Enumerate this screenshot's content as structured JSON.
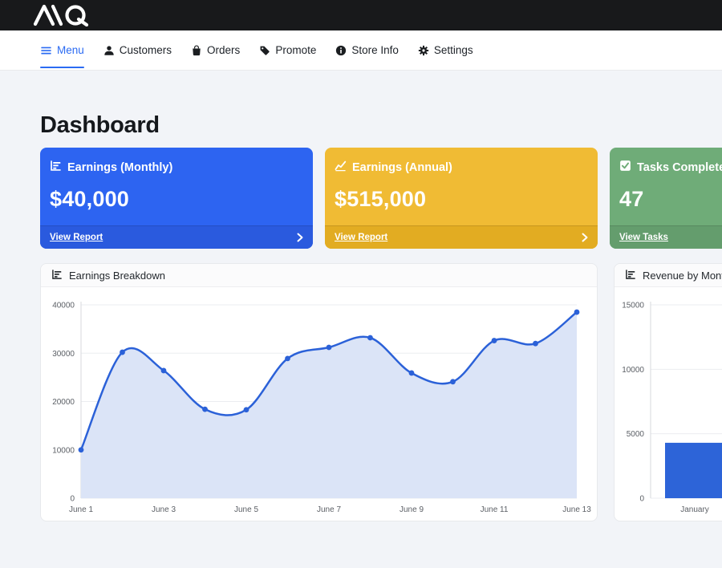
{
  "brand": {
    "name": "AQ"
  },
  "nav": {
    "items": [
      {
        "label": "Menu",
        "icon": "hamburger-icon",
        "active": true
      },
      {
        "label": "Customers",
        "icon": "person-icon",
        "active": false
      },
      {
        "label": "Orders",
        "icon": "shopping-bag-icon",
        "active": false
      },
      {
        "label": "Promote",
        "icon": "tag-icon",
        "active": false
      },
      {
        "label": "Store Info",
        "icon": "info-circle-icon",
        "active": false
      },
      {
        "label": "Settings",
        "icon": "gear-icon",
        "active": false
      }
    ]
  },
  "page": {
    "title": "Dashboard"
  },
  "stat_cards": [
    {
      "title": "Earnings (Monthly)",
      "value": "$40,000",
      "link": "View Report",
      "icon": "chart-bar-icon",
      "color": "#2d64f1",
      "footer_color": "#2a5ade"
    },
    {
      "title": "Earnings (Annual)",
      "value": "$515,000",
      "link": "View Report",
      "icon": "chart-line-icon",
      "color": "#f0bb34",
      "footer_color": "#e2ac22"
    },
    {
      "title": "Tasks Completed",
      "value": "47",
      "link": "View Tasks",
      "icon": "check-square-icon",
      "color": "#6fac78",
      "footer_color": "#649d6d"
    }
  ],
  "chart_data": [
    {
      "type": "area",
      "title": "Earnings Breakdown",
      "x": [
        "June 1",
        "June 2",
        "June 3",
        "June 4",
        "June 5",
        "June 6",
        "June 7",
        "June 8",
        "June 9",
        "June 10",
        "June 11",
        "June 12",
        "June 13"
      ],
      "values": [
        10000,
        30200,
        26400,
        18400,
        18300,
        28900,
        31200,
        33200,
        25900,
        24100,
        32600,
        32000,
        38500
      ],
      "ylim": [
        0,
        40000
      ],
      "yticks": [
        0,
        10000,
        20000,
        30000,
        40000
      ],
      "x_tick_every": 2,
      "line_color": "#2b61d8",
      "fill_color": "#dbe4f7",
      "grid": true,
      "legend": "none"
    },
    {
      "type": "bar",
      "title": "Revenue by Month",
      "categories": [
        "January"
      ],
      "values": [
        4300
      ],
      "ylim": [
        0,
        15000
      ],
      "yticks": [
        0,
        5000,
        10000,
        15000
      ],
      "bar_color": "#2d64d8",
      "grid": true,
      "legend": "none"
    }
  ]
}
